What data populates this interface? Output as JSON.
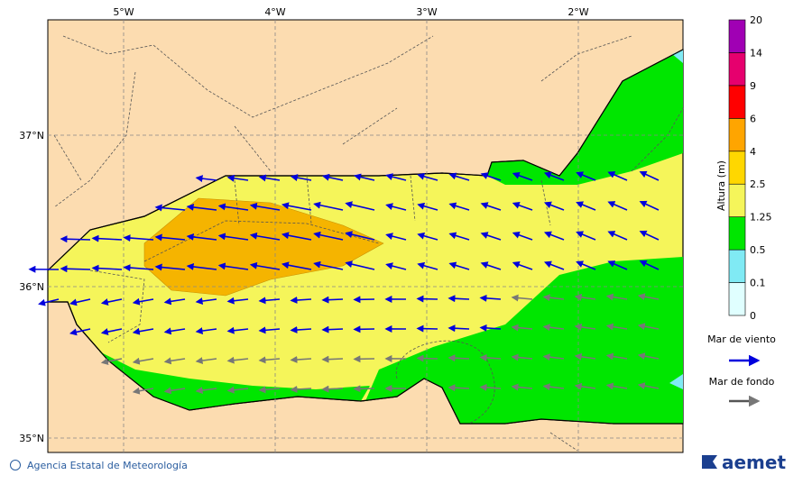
{
  "map": {
    "lon_labels": [
      "5°W",
      "4°W",
      "3°W",
      "2°W"
    ],
    "lat_labels": [
      "37°N",
      "36°N",
      "35°N"
    ]
  },
  "colorbar": {
    "label": "Altura (m)",
    "levels": [
      "0",
      "0.1",
      "0.5",
      "1.25",
      "2.5",
      "4",
      "6",
      "9",
      "14",
      "20"
    ],
    "colors": [
      "#e0ffff",
      "#80eaf4",
      "#00e600",
      "#f5f55a",
      "#ffd700",
      "#ffa500",
      "#ff0000",
      "#e6006e",
      "#a000b4"
    ]
  },
  "legend": {
    "wind": "Mar de viento",
    "swell": "Mar de fondo"
  },
  "footer": {
    "agency": "Agencia Estatal de Meteorología",
    "logo": "aemet"
  }
}
